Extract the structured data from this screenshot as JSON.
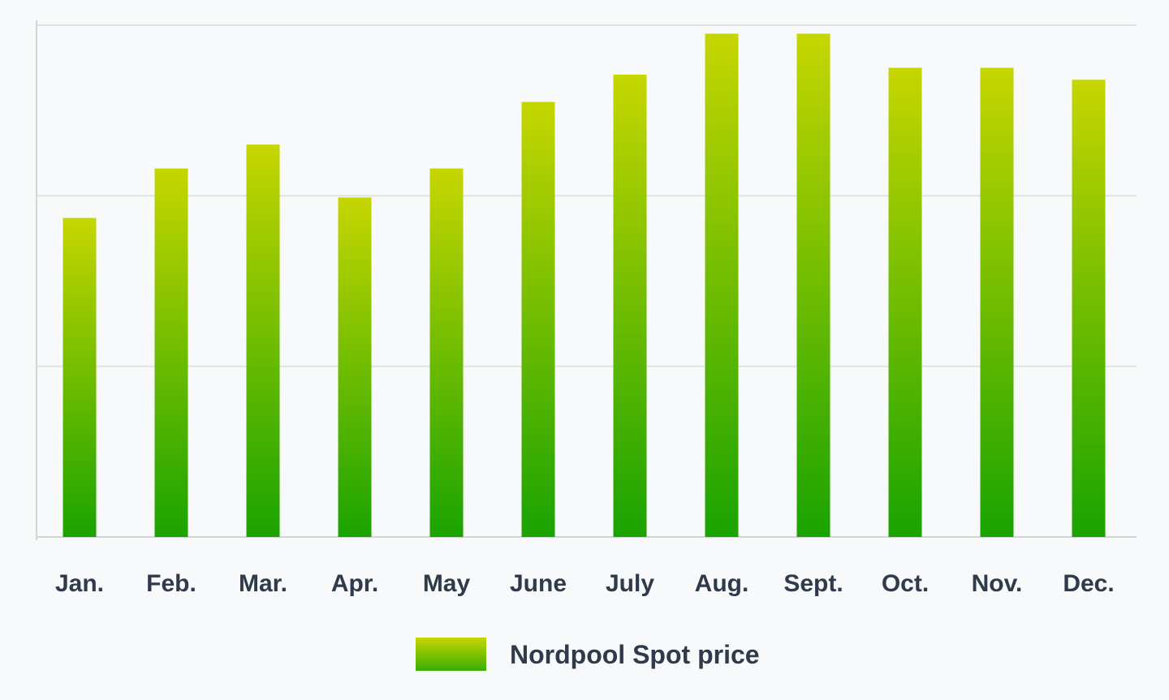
{
  "chart_data": {
    "type": "bar",
    "title": "",
    "xlabel": "",
    "ylabel": "",
    "categories": [
      "Jan.",
      "Feb.",
      "Mar.",
      "Apr.",
      "May",
      "June",
      "July",
      "Aug.",
      "Sept.",
      "Oct.",
      "Nov.",
      "Dec."
    ],
    "series": [
      {
        "name": "Nordpool Spot price",
        "values": [
          1.87,
          2.16,
          2.3,
          1.99,
          2.16,
          2.55,
          2.71,
          2.95,
          2.95,
          2.75,
          2.75,
          2.68
        ]
      }
    ],
    "ylim": [
      0,
      3
    ],
    "y_ticks_labeled": false,
    "grid": true,
    "legend": {
      "position": "bottom-center",
      "label": "Nordpool Spot price"
    },
    "colors": {
      "bar_top": "#c6d600",
      "bar_bottom": "#1aa300",
      "grid": "#dde3e0",
      "axis": "#cfd6d3",
      "text": "#2f3a4a",
      "background": "#f7f9fa"
    }
  }
}
